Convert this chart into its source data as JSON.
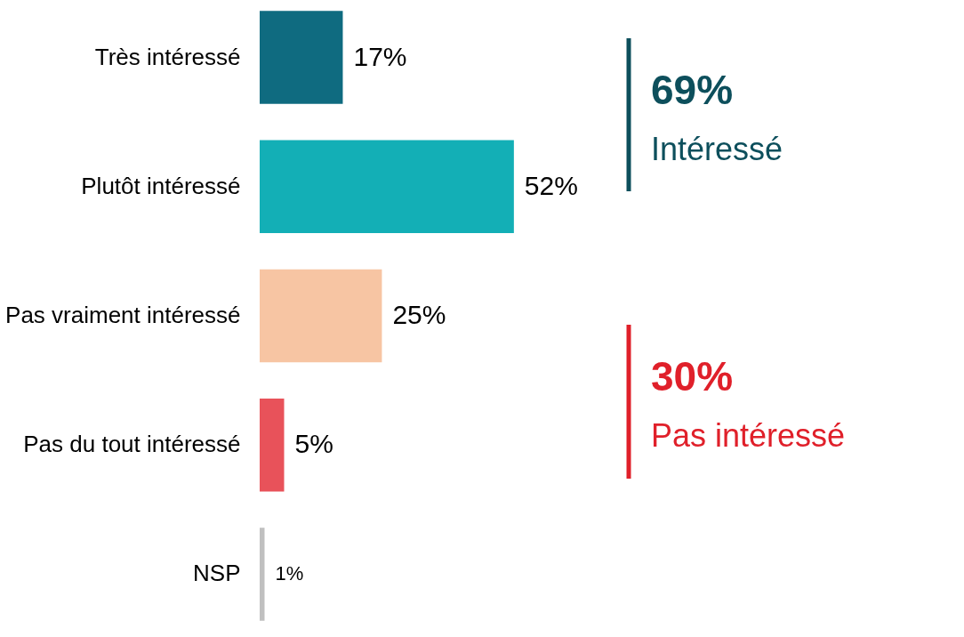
{
  "chart_data": {
    "type": "bar",
    "orientation": "horizontal",
    "categories": [
      "Très intéressé",
      "Plutôt intéressé",
      "Pas vraiment intéressé",
      "Pas du tout intéressé",
      "NSP"
    ],
    "values": [
      17,
      52,
      25,
      5,
      1
    ],
    "colors": [
      "#0f6b80",
      "#13afb6",
      "#f7c5a3",
      "#e8525a",
      "#c0c0c0"
    ],
    "value_labels": [
      "17%",
      "52%",
      "25%",
      "5%",
      "1%"
    ],
    "annotations": [
      "69%",
      "Intéressé",
      "30%",
      "Pas intéressé"
    ],
    "tick_labels": "y",
    "grid": false
  }
}
